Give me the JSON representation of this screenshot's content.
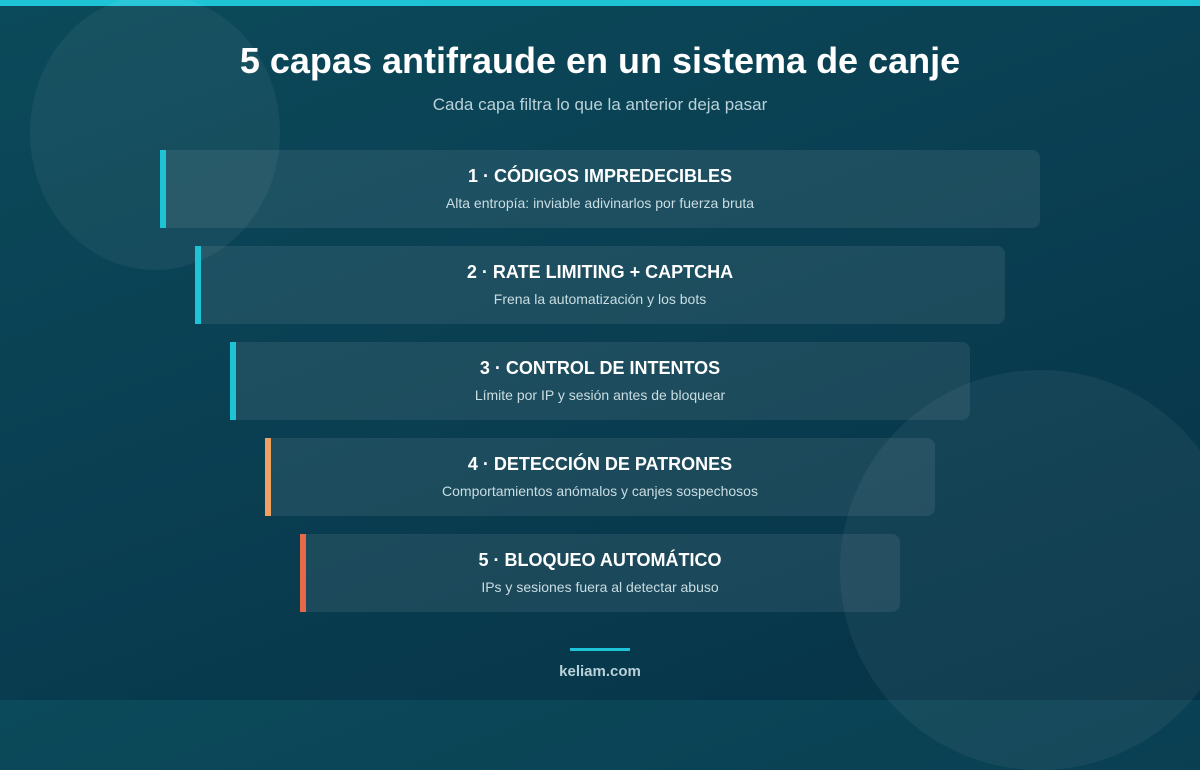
{
  "header": {
    "title": "5 capas antifraude en un sistema de canje",
    "subtitle": "Cada capa filtra lo que la anterior deja pasar"
  },
  "layers": [
    {
      "title": "1 · CÓDIGOS IMPREDECIBLES",
      "description": "Alta entropía: inviable adivinarlos por fuerza bruta",
      "accent_color": "#1ec4d6"
    },
    {
      "title": "2 · RATE LIMITING + CAPTCHA",
      "description": "Frena la automatización y los bots",
      "accent_color": "#1ec4d6"
    },
    {
      "title": "3 · CONTROL DE INTENTOS",
      "description": "Límite por IP y sesión antes de bloquear",
      "accent_color": "#1ec4d6"
    },
    {
      "title": "4 · DETECCIÓN DE PATRONES",
      "description": "Comportamientos anómalos y canjes sospechosos",
      "accent_color": "#f0a060"
    },
    {
      "title": "5 · BLOQUEO AUTOMÁTICO",
      "description": "IPs y sesiones fuera al detectar abuso",
      "accent_color": "#e8684a"
    }
  ],
  "footer": {
    "site": "keliam.com"
  },
  "colors": {
    "top_bar": "#1ec4d6",
    "background": "#0a3f52"
  }
}
